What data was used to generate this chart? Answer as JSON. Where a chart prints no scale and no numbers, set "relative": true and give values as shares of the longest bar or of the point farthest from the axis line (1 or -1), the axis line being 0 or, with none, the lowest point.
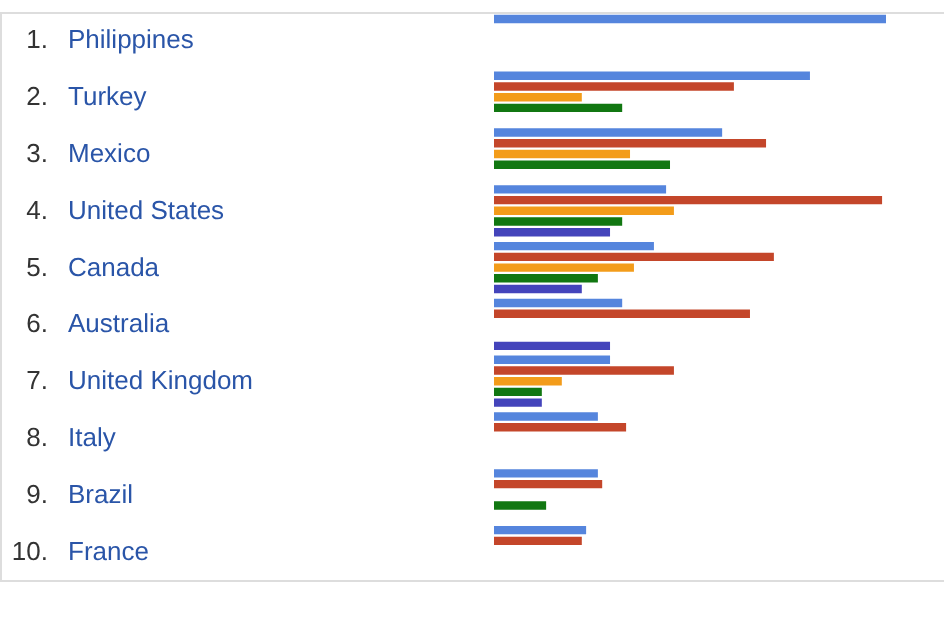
{
  "chart_data": {
    "type": "bar",
    "orientation": "horizontal",
    "relative": true,
    "categories": [
      "Philippines",
      "Turkey",
      "Mexico",
      "United States",
      "Canada",
      "Australia",
      "United Kingdom",
      "Italy",
      "Brazil",
      "France"
    ],
    "annotations": [
      "1.",
      "2.",
      "3.",
      "4.",
      "5.",
      "6.",
      "7.",
      "8.",
      "9.",
      "10."
    ],
    "series": [
      {
        "color": "#5585dd",
        "values": [
          1,
          0.806,
          0.582,
          0.439,
          0.408,
          0.327,
          0.296,
          0.265,
          0.265,
          0.235
        ]
      },
      {
        "color": "#c4462a",
        "values": [
          null,
          0.612,
          0.694,
          0.99,
          0.714,
          0.653,
          0.459,
          0.337,
          0.276,
          0.224
        ]
      },
      {
        "color": "#f39c1a",
        "values": [
          null,
          0.224,
          0.347,
          0.459,
          0.357,
          null,
          0.173,
          null,
          null,
          null
        ]
      },
      {
        "color": "#117711",
        "values": [
          null,
          0.327,
          0.449,
          0.327,
          0.265,
          null,
          0.122,
          null,
          0.133,
          null
        ]
      },
      {
        "color": "#4444bb",
        "values": [
          null,
          null,
          null,
          0.296,
          0.224,
          0.296,
          0.122,
          null,
          null,
          null
        ]
      }
    ]
  }
}
